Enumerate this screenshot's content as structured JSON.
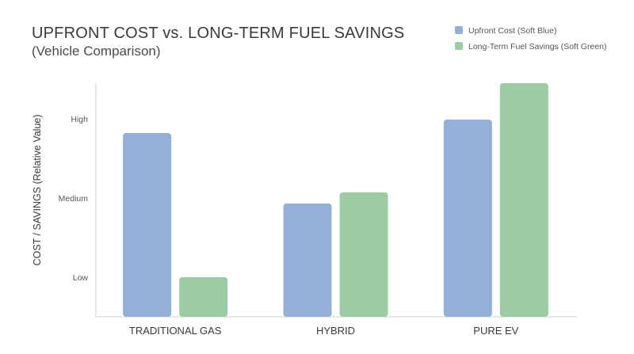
{
  "chart_data": {
    "type": "bar",
    "title": "UPFRONT COST vs. LONG-TERM FUEL SAVINGS",
    "subtitle": "(Vehicle Comparison)",
    "xlabel": "",
    "ylabel": "COST / SAVINGS (Relative Value)",
    "categories": [
      "TRADITIONAL GAS",
      "HYBRID",
      "PURE EV"
    ],
    "y_tick_labels": [
      {
        "label": "Low",
        "value": 1
      },
      {
        "label": "Medium",
        "value": 2
      },
      {
        "label": "High",
        "value": 3
      }
    ],
    "ylim": [
      0.5,
      3.5
    ],
    "grid": false,
    "legend_position": "top-right",
    "series": [
      {
        "name": "Upfront Cost (Soft Blue)",
        "color": "#95b0d6",
        "values": [
          2.82,
          1.93,
          2.99
        ]
      },
      {
        "name": "Long-Term Fuel Savings (Soft Green)",
        "color": "#9ccca4",
        "values": [
          1.0,
          2.07,
          3.45
        ]
      }
    ]
  }
}
